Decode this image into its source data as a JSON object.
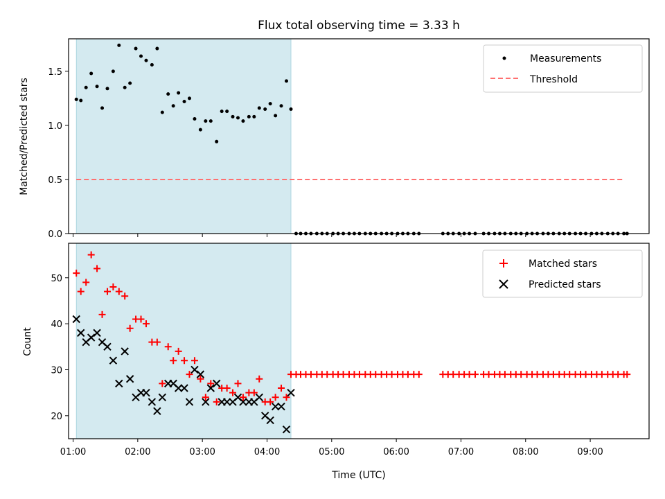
{
  "chart_data": [
    {
      "type": "scatter",
      "title": "Flux total observing time = 3.33 h",
      "xlabel": "",
      "ylabel": "Matched/Predicted stars",
      "xlim_hours": [
        0.93,
        9.91
      ],
      "ylim": [
        0,
        1.8
      ],
      "yticks": [
        "0.0",
        "0.5",
        "1.0",
        "1.5"
      ],
      "shaded_span_hours": [
        1.05,
        4.37
      ],
      "shaded_color": "#d4eaf0",
      "legend": {
        "location": "top-right",
        "entries": [
          "Measurements",
          "Threshold"
        ]
      },
      "series": [
        {
          "name": "Measurements",
          "marker": "dot",
          "color": "#000000",
          "x": [
            1.05,
            1.12,
            1.2,
            1.28,
            1.37,
            1.45,
            1.53,
            1.62,
            1.71,
            1.8,
            1.88,
            1.97,
            2.05,
            2.13,
            2.22,
            2.3,
            2.38,
            2.47,
            2.55,
            2.63,
            2.72,
            2.8,
            2.88,
            2.97,
            3.05,
            3.13,
            3.22,
            3.3,
            3.38,
            3.47,
            3.55,
            3.63,
            3.72,
            3.8,
            3.88,
            3.97,
            4.05,
            4.13,
            4.22,
            4.3,
            4.37
          ],
          "y": [
            1.24,
            1.23,
            1.35,
            1.48,
            1.36,
            1.16,
            1.34,
            1.5,
            1.74,
            1.35,
            1.39,
            1.71,
            1.64,
            1.6,
            1.56,
            1.71,
            1.12,
            1.29,
            1.18,
            1.3,
            1.22,
            1.25,
            1.06,
            0.96,
            1.04,
            1.04,
            0.85,
            1.13,
            1.13,
            1.08,
            1.07,
            1.04,
            1.08,
            1.08,
            1.16,
            1.15,
            1.2,
            1.09,
            1.18,
            1.41,
            1.15
          ]
        },
        {
          "name": "Measurements (zero)",
          "marker": "dot",
          "color": "#000000",
          "x": [
            4.45,
            4.52,
            4.6,
            4.68,
            4.77,
            4.85,
            4.93,
            5.02,
            5.1,
            5.18,
            5.27,
            5.35,
            5.43,
            5.52,
            5.6,
            5.68,
            5.77,
            5.85,
            5.93,
            6.02,
            6.1,
            6.18,
            6.27,
            6.35,
            6.72,
            6.8,
            6.88,
            6.97,
            7.05,
            7.13,
            7.22,
            7.35,
            7.43,
            7.52,
            7.6,
            7.68,
            7.77,
            7.85,
            7.93,
            8.02,
            8.1,
            8.18,
            8.27,
            8.35,
            8.43,
            8.52,
            8.6,
            8.68,
            8.77,
            8.85,
            8.93,
            9.02,
            9.1,
            9.18,
            9.27,
            9.35,
            9.43,
            9.52,
            9.57
          ],
          "y_constant": 0
        },
        {
          "name": "Threshold",
          "style": "dashed",
          "color": "#ff7070",
          "x": [
            1.05,
            9.52
          ],
          "y": [
            0.5,
            0.5
          ]
        }
      ]
    },
    {
      "type": "scatter",
      "title": "",
      "xlabel": "Time (UTC)",
      "ylabel": "Count",
      "xlim_hours": [
        0.93,
        9.91
      ],
      "ylim": [
        15,
        57.5
      ],
      "yticks": [
        "20",
        "30",
        "40",
        "50"
      ],
      "xticks": [
        "01:00",
        "02:00",
        "03:00",
        "04:00",
        "05:00",
        "06:00",
        "07:00",
        "08:00",
        "09:00"
      ],
      "shaded_span_hours": [
        1.05,
        4.37
      ],
      "shaded_color": "#d4eaf0",
      "legend": {
        "location": "top-right",
        "entries": [
          "Matched stars",
          "Predicted stars"
        ]
      },
      "series": [
        {
          "name": "Matched stars",
          "marker": "plus",
          "color": "#ff0000",
          "x": [
            1.05,
            1.12,
            1.2,
            1.28,
            1.37,
            1.45,
            1.53,
            1.62,
            1.71,
            1.8,
            1.88,
            1.97,
            2.05,
            2.13,
            2.22,
            2.3,
            2.38,
            2.47,
            2.55,
            2.63,
            2.72,
            2.8,
            2.88,
            2.97,
            3.05,
            3.13,
            3.22,
            3.3,
            3.38,
            3.47,
            3.55,
            3.63,
            3.72,
            3.8,
            3.88,
            3.97,
            4.05,
            4.13,
            4.22,
            4.3,
            4.37
          ],
          "y": [
            51,
            47,
            49,
            55,
            52,
            42,
            47,
            48,
            47,
            46,
            39,
            41,
            41,
            40,
            36,
            36,
            27,
            35,
            32,
            34,
            32,
            29,
            32,
            28,
            24,
            27,
            23,
            26,
            26,
            25,
            27,
            24,
            25,
            25,
            28,
            23,
            23,
            24,
            26,
            24,
            29
          ]
        },
        {
          "name": "Matched stars (after)",
          "marker": "plus",
          "color": "#ff0000",
          "x": [
            4.45,
            4.52,
            4.6,
            4.68,
            4.77,
            4.85,
            4.93,
            5.02,
            5.1,
            5.18,
            5.27,
            5.35,
            5.43,
            5.52,
            5.6,
            5.68,
            5.77,
            5.85,
            5.93,
            6.02,
            6.1,
            6.18,
            6.27,
            6.35,
            6.72,
            6.8,
            6.88,
            6.97,
            7.05,
            7.13,
            7.22,
            7.35,
            7.43,
            7.52,
            7.6,
            7.68,
            7.77,
            7.85,
            7.93,
            8.02,
            8.1,
            8.18,
            8.27,
            8.35,
            8.43,
            8.52,
            8.6,
            8.68,
            8.77,
            8.85,
            8.93,
            9.02,
            9.1,
            9.18,
            9.27,
            9.35,
            9.43,
            9.52,
            9.57
          ],
          "y_constant": 29
        },
        {
          "name": "Predicted stars",
          "marker": "x",
          "color": "#000000",
          "x": [
            1.05,
            1.12,
            1.2,
            1.28,
            1.37,
            1.45,
            1.53,
            1.62,
            1.71,
            1.8,
            1.88,
            1.97,
            2.05,
            2.13,
            2.22,
            2.3,
            2.38,
            2.47,
            2.55,
            2.63,
            2.72,
            2.8,
            2.88,
            2.97,
            3.05,
            3.13,
            3.22,
            3.3,
            3.38,
            3.47,
            3.55,
            3.63,
            3.72,
            3.8,
            3.88,
            3.97,
            4.05,
            4.13,
            4.22,
            4.3,
            4.37
          ],
          "y": [
            41,
            38,
            36,
            37,
            38,
            36,
            35,
            32,
            27,
            34,
            28,
            24,
            25,
            25,
            23,
            21,
            24,
            27,
            27,
            26,
            26,
            23,
            30,
            29,
            23,
            26,
            27,
            23,
            23,
            23,
            24,
            23,
            23,
            23,
            24,
            20,
            19,
            22,
            22,
            17,
            25
          ]
        }
      ]
    }
  ]
}
